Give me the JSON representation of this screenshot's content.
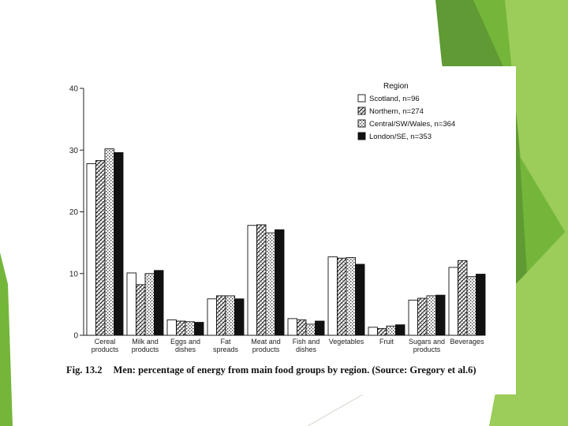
{
  "colors": {
    "accent_dark": "#5f9a34",
    "accent_mid": "#74b63a",
    "accent_light": "#9ccc5a",
    "accent_pale": "#bfe08a",
    "bar_outline": "#111111",
    "black_bar": "#111111"
  },
  "caption": {
    "number": "Fig. 13.2",
    "text": "Men: percentage of energy from main food groups by region. (Source: Gregory et al.6)"
  },
  "chart_data": {
    "type": "bar",
    "title": "",
    "xlabel": "",
    "ylabel": "",
    "ylim": [
      0,
      40
    ],
    "yticks": [
      0,
      10,
      20,
      30,
      40
    ],
    "ytick_labels": [
      "0",
      "10",
      "20",
      "30",
      "40"
    ],
    "legend_title": "Region",
    "legend_position": "top-right",
    "categories": [
      [
        "Cereal",
        "products"
      ],
      [
        "Milk and",
        "products"
      ],
      [
        "Eggs and",
        "dishes"
      ],
      [
        "Fat",
        "spreads"
      ],
      [
        "Meat and",
        "products"
      ],
      [
        "Fish and",
        "dishes"
      ],
      [
        "Vegetables"
      ],
      [
        "Fruit"
      ],
      [
        "Sugars and",
        "products"
      ],
      [
        "Beverages"
      ]
    ],
    "series": [
      {
        "name": "Scotland, n=96",
        "fill": "white",
        "values": [
          27.8,
          10.1,
          2.5,
          5.9,
          17.8,
          2.7,
          12.7,
          1.3,
          5.7,
          11.0
        ]
      },
      {
        "name": "Northern, n=274",
        "fill": "hatch",
        "values": [
          28.3,
          8.2,
          2.3,
          6.4,
          17.9,
          2.5,
          12.5,
          1.1,
          6.0,
          12.1
        ]
      },
      {
        "name": "Central/SW/Wales, n=364",
        "fill": "dots",
        "values": [
          30.2,
          10.0,
          2.2,
          6.4,
          16.6,
          1.8,
          12.6,
          1.5,
          6.4,
          9.5
        ]
      },
      {
        "name": "London/SE, n=353",
        "fill": "black",
        "values": [
          29.6,
          10.5,
          2.1,
          5.9,
          17.1,
          2.3,
          11.5,
          1.7,
          6.5,
          9.9
        ]
      }
    ]
  }
}
